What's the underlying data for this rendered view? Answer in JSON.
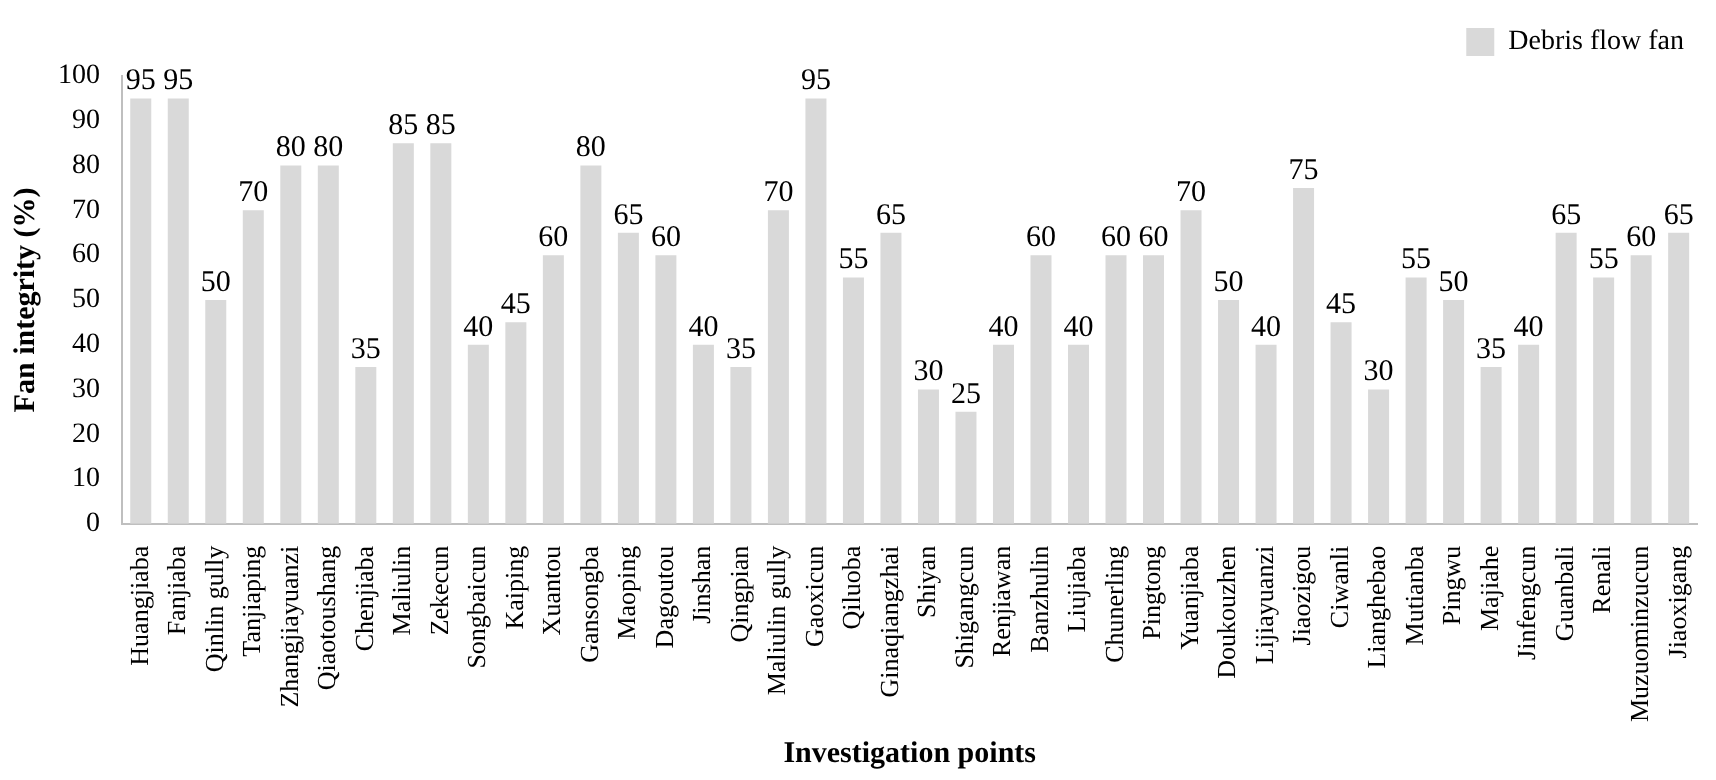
{
  "chart_data": {
    "type": "bar",
    "xlabel": "Investigation points",
    "ylabel": "Fan integrity (%)",
    "categories": [
      "Huangjiaba",
      "Fanjiaba",
      "Qinlin gully",
      "Tanjiaping",
      "Zhangjiayuanzi",
      "Qiaotoushang",
      "Chenjiaba",
      "Maliulin",
      "Zekecun",
      "Songbaicun",
      "Kaiping",
      "Xuantou",
      "Gansongba",
      "Maoping",
      "Dagoutou",
      "Jinshan",
      "Qingpian",
      "Maliulin gully",
      "Gaoxicun",
      "Qiluoba",
      "Ginaqiangzhai",
      "Shiyan",
      "Shigangcun",
      "Renjiawan",
      "Banzhulin",
      "Liujiaba",
      "Chunerling",
      "Pingtong",
      "Yuanjiaba",
      "Doukouzhen",
      "Lijiayuanzi",
      "Jiaozigou",
      "Ciwanli",
      "Lianghebao",
      "Mutianba",
      "Pingwu",
      "Majiahe",
      "Jinfengcun",
      "Guanbali",
      "Renali",
      "Muzuominzucun",
      "Jiaoxigang"
    ],
    "series": [
      {
        "name": "Debris flow fan",
        "color": "#d9d9d9",
        "values": [
          95,
          95,
          50,
          70,
          80,
          80,
          35,
          85,
          85,
          40,
          45,
          60,
          80,
          65,
          60,
          40,
          35,
          70,
          95,
          55,
          65,
          30,
          25,
          40,
          60,
          40,
          60,
          60,
          70,
          50,
          40,
          75,
          45,
          30,
          55,
          50,
          35,
          40,
          65,
          55,
          60,
          65
        ]
      }
    ],
    "ylim": [
      0,
      100
    ],
    "yticks": [
      0,
      10,
      20,
      30,
      40,
      50,
      60,
      70,
      80,
      90,
      100
    ],
    "grid": false,
    "legend": "top right",
    "data_labels": true
  }
}
